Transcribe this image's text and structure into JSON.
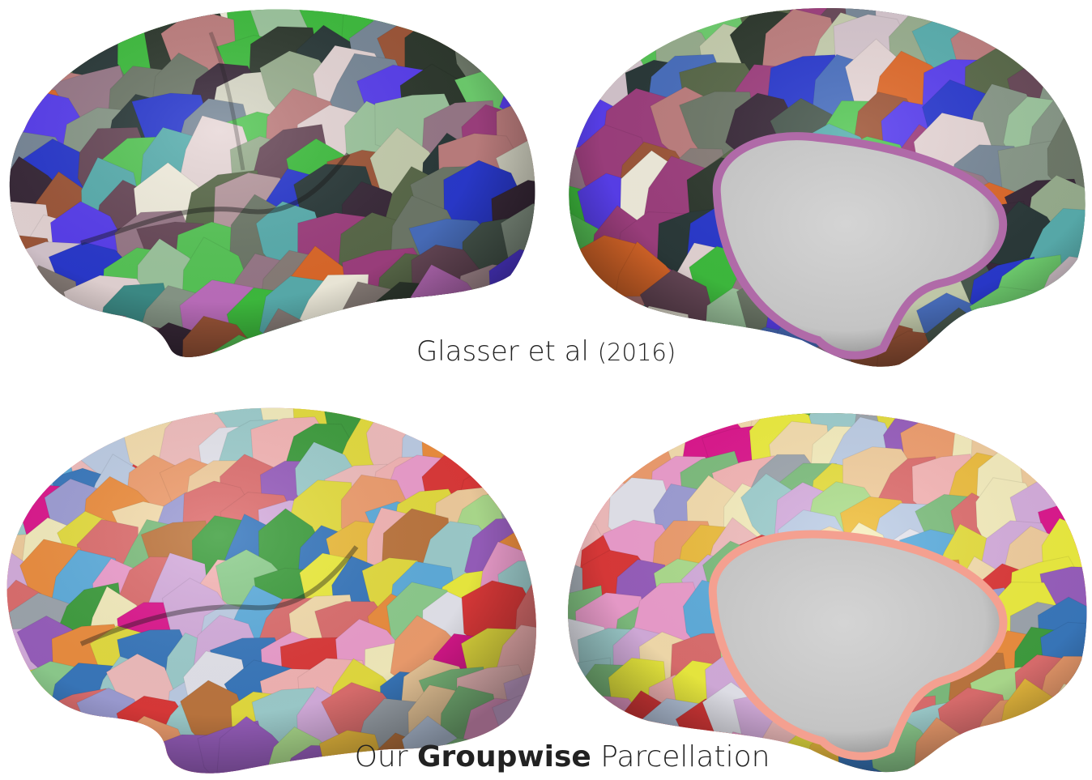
{
  "captions": {
    "top": {
      "authors": "Glasser et al",
      "year": "(2016)"
    },
    "bottom": {
      "prefix": "Our",
      "emphasis": "Groupwise",
      "suffix": "Parcellation"
    }
  },
  "colors": {
    "background": "#ffffff",
    "medial_wall": "#c8c8c8",
    "glasser_palette": [
      "#6f7a6a",
      "#8a7f7a",
      "#3fbf3f",
      "#58c858",
      "#d9d9c8",
      "#f4f0e0",
      "#4a5a50",
      "#2b3a3a",
      "#9a7a8a",
      "#c08080",
      "#e06a2a",
      "#a0583a",
      "#4a70c0",
      "#2a3ad0",
      "#5a40f0",
      "#7a8a9a",
      "#c070c0",
      "#a04080",
      "#b89aa0",
      "#8a9a8a",
      "#c8d0b0",
      "#9fc8a0",
      "#70d070",
      "#2f3a2f",
      "#5a6a4a",
      "#6a4a5a",
      "#e8d8d8",
      "#9ab090",
      "#3a2a3a",
      "#d8c8d0",
      "#5ab0b0",
      "#3e8f8a"
    ],
    "groupwise_palette": [
      "#e03a3a",
      "#e8e040",
      "#3a7ac0",
      "#40a040",
      "#f2a070",
      "#f4c0c0",
      "#c0d0e8",
      "#b0e090",
      "#f0a0d0",
      "#a0a0d8",
      "#c07840",
      "#e01890",
      "#f8f0c0",
      "#f4d0a0",
      "#a0a8b0",
      "#f0f040",
      "#9a60c0",
      "#60b0e0",
      "#f09040",
      "#e8e8f0",
      "#90d090",
      "#f8e0b0",
      "#e07070",
      "#80c080",
      "#d8b0e0",
      "#f0c040",
      "#a0d0d0",
      "#f8b8b8"
    ]
  }
}
